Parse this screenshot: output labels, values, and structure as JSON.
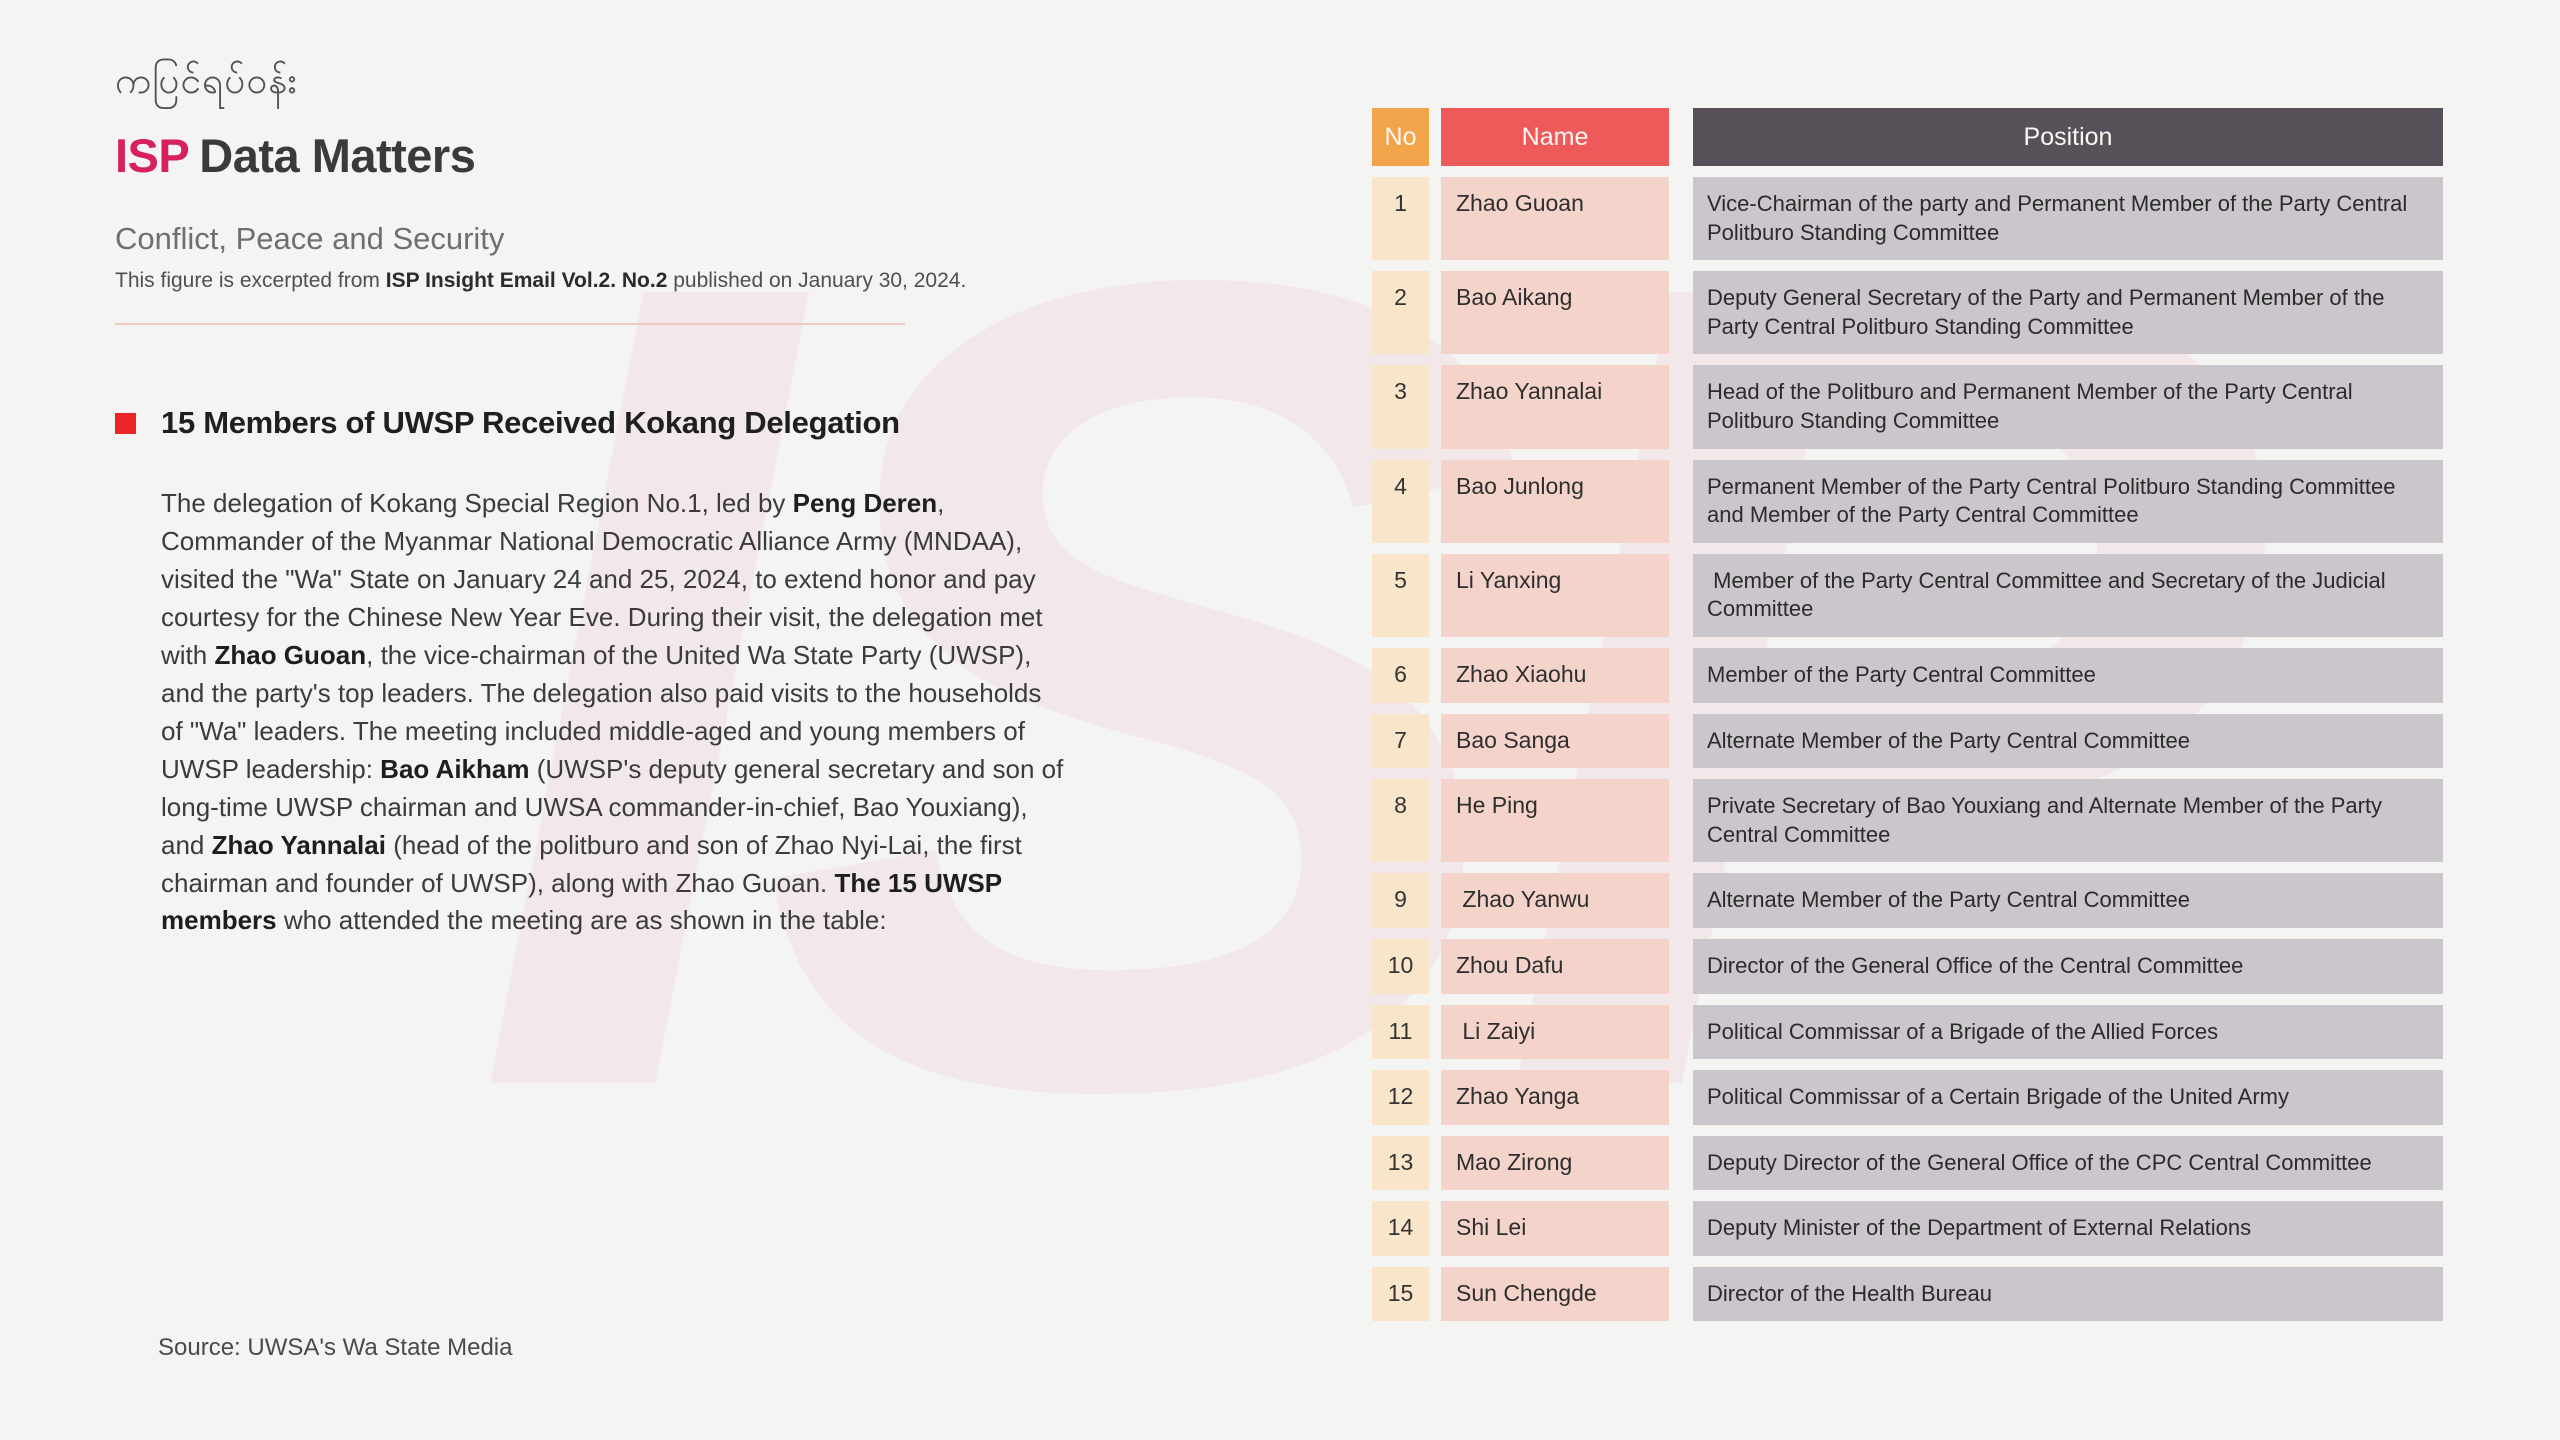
{
  "colors": {
    "page_background": "#f4f4f3",
    "brand_pink": "#d6215c",
    "bullet_red": "#e92528",
    "divider_pink": "#efc9c3",
    "header_no_orange": "#f2a44a",
    "header_name_red": "#ee5a5a",
    "header_position_dark": "#575059",
    "cell_no_peach": "#f9e5ca",
    "cell_name_pink": "#f3d3ca",
    "cell_position_gray": "#cbc5cc"
  },
  "watermark": "ISP",
  "header": {
    "burmese_title": "ကပြင်ရပ်ဝန်း",
    "logo_isp": "ISP",
    "logo_rest": "Data Matters",
    "category": "Conflict, Peace and Security",
    "excerpt_prefix": "This figure is excerpted from ",
    "excerpt_bold": "ISP Insight Email Vol.2. No.2",
    "excerpt_suffix": " published on January 30, 2024."
  },
  "article": {
    "title": "15 Members of UWSP Received Kokang Delegation",
    "paragraph": {
      "s1": "The delegation of Kokang Special Region No.1, led by ",
      "b1": "Peng Deren",
      "s2": ", Commander of the Myanmar National Democratic Alliance Army (MNDAA), visited the \"Wa\" State on January 24 and 25, 2024, to extend honor and pay courtesy for the Chinese New Year Eve. During their visit, the delegation met with ",
      "b2": "Zhao Guoan",
      "s3": ", the vice-chairman of the United Wa State Party (UWSP), and the party's top leaders. The delegation also paid visits to the households of \"Wa\" leaders. The meeting included middle-aged and young members of UWSP leadership: ",
      "b3": "Bao Aikham",
      "s4": " (UWSP's deputy general secretary and son of long-time UWSP chairman and UWSA commander-in-chief, Bao Youxiang), and ",
      "b4": "Zhao Yannalai",
      "s5": " (head of the politburo and son of Zhao Nyi-Lai, the first chairman and founder of UWSP), along with Zhao Guoan. ",
      "b5": "The 15 UWSP members",
      "s6": " who attended the meeting are as shown in the table:"
    }
  },
  "table": {
    "headers": {
      "no": "No",
      "name": "Name",
      "position": "Position"
    },
    "rows": [
      {
        "no": "1",
        "name": "Zhao Guoan",
        "position": "Vice-Chairman of the party and Permanent Member of the Party Central Politburo Standing Committee"
      },
      {
        "no": "2",
        "name": "Bao Aikang",
        "position": "Deputy General Secretary of the Party and Permanent Member of the Party Central Politburo Standing Committee"
      },
      {
        "no": "3",
        "name": "Zhao Yannalai",
        "position": "Head of the Politburo and Permanent Member of the Party Central Politburo Standing Committee"
      },
      {
        "no": "4",
        "name": "Bao Junlong",
        "position": "Permanent Member of the Party Central Politburo Standing Committee and Member of the Party Central Committee"
      },
      {
        "no": "5",
        "name": "Li Yanxing",
        "position": " Member of the Party Central Committee and Secretary of the Judicial Committee"
      },
      {
        "no": "6",
        "name": "Zhao Xiaohu",
        "position": "Member of the Party Central Committee"
      },
      {
        "no": "7",
        "name": "Bao Sanga",
        "position": "Alternate Member of the Party Central Committee"
      },
      {
        "no": "8",
        "name": "He Ping",
        "position": "Private Secretary of Bao Youxiang and Alternate Member of the Party Central Committee"
      },
      {
        "no": "9",
        "name": " Zhao Yanwu",
        "position": "Alternate Member of the Party Central Committee"
      },
      {
        "no": "10",
        "name": "Zhou Dafu",
        "position": "Director of the General Office of the Central Committee"
      },
      {
        "no": "11",
        "name": " Li Zaiyi",
        "position": "Political Commissar of a Brigade of the Allied Forces"
      },
      {
        "no": "12",
        "name": "Zhao Yanga",
        "position": "Political Commissar of a Certain Brigade of the United Army"
      },
      {
        "no": "13",
        "name": "Mao Zirong",
        "position": "Deputy Director of the General Office of the CPC Central Committee"
      },
      {
        "no": "14",
        "name": "Shi Lei",
        "position": "Deputy Minister of the Department of External Relations"
      },
      {
        "no": "15",
        "name": "Sun Chengde",
        "position": "Director of the Health Bureau"
      }
    ]
  },
  "footer": {
    "source": "Source: UWSA's Wa State Media"
  }
}
